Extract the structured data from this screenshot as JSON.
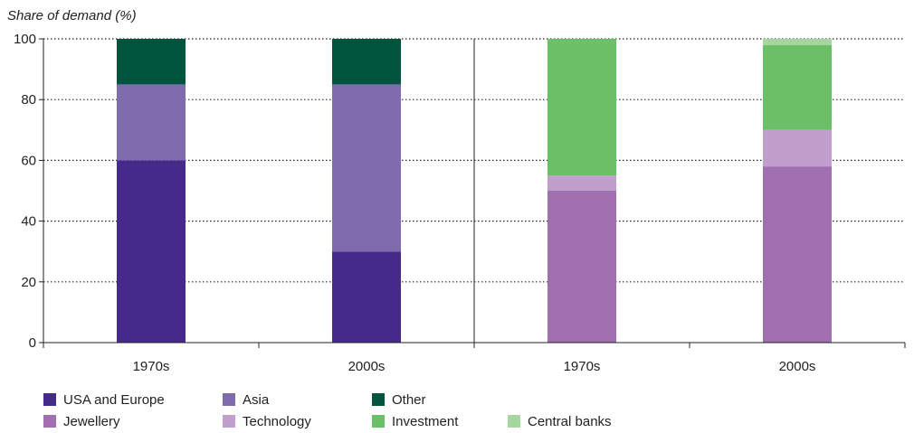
{
  "chart_data": {
    "type": "bar",
    "stacked": true,
    "ylabel": "Share of demand (%)",
    "ylim": [
      0,
      100
    ],
    "yticks": [
      0,
      20,
      40,
      60,
      80,
      100
    ],
    "grid": "horizontal-dotted",
    "categories": [
      "1970s",
      "2000s",
      "1970s",
      "2000s"
    ],
    "panels": [
      {
        "categories": [
          "1970s",
          "2000s"
        ],
        "series": [
          {
            "name": "USA and Europe",
            "color": "#462a8a",
            "values": [
              60,
              30
            ]
          },
          {
            "name": "Asia",
            "color": "#7f6cae",
            "values": [
              25,
              55
            ]
          },
          {
            "name": "Other",
            "color": "#00543d",
            "values": [
              15,
              15
            ]
          }
        ]
      },
      {
        "categories": [
          "1970s",
          "2000s"
        ],
        "series": [
          {
            "name": "Jewellery",
            "color": "#9f6fb0",
            "values": [
              50,
              58
            ]
          },
          {
            "name": "Technology",
            "color": "#c09fcc",
            "values": [
              5,
              12
            ]
          },
          {
            "name": "Investment",
            "color": "#6bbf67",
            "values": [
              45,
              28
            ]
          },
          {
            "name": "Central banks",
            "color": "#a6d6a0",
            "values": [
              0,
              2
            ]
          }
        ]
      }
    ],
    "legend": {
      "placement": "bottom",
      "rows": [
        [
          "USA and Europe",
          "Asia",
          "Other"
        ],
        [
          "Jewellery",
          "Technology",
          "Investment",
          "Central banks"
        ]
      ]
    }
  }
}
